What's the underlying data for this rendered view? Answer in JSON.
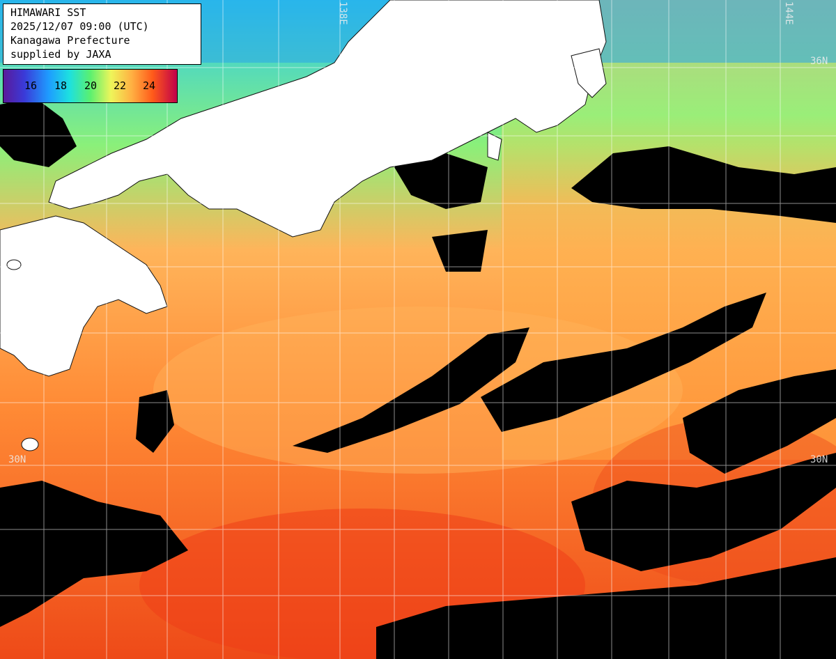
{
  "header": {
    "line1": "HIMAWARI SST",
    "line2": "2025/12/07 09:00 (UTC)",
    "line3": "Kanagawa Prefecture",
    "line4": "supplied by JAXA"
  },
  "legend": {
    "ticks": [
      "16",
      "18",
      "20",
      "22",
      "24"
    ],
    "colors": [
      "#6a1fa0",
      "#2f4ce0",
      "#19c8ff",
      "#4af07a",
      "#e8f65a",
      "#ffc24a",
      "#ff7a1a",
      "#e81d1d",
      "#c0004a"
    ]
  },
  "grid": {
    "lat_labels": [
      "36N",
      "30N"
    ],
    "lon_labels": [
      "138E",
      "144E"
    ]
  },
  "colors": {
    "land": "#ffffff",
    "cloud": "#000000",
    "cool_water": "#28cdf0",
    "mid_water": "#8ef07a",
    "warm_water": "#ffb050",
    "hot_water": "#f05020"
  }
}
